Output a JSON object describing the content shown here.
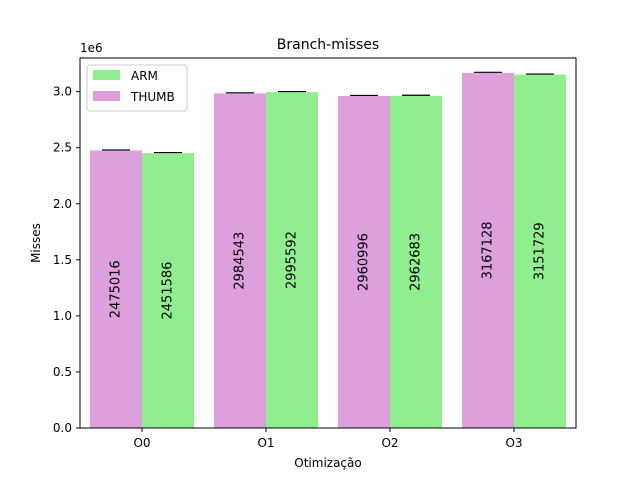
{
  "chart_data": {
    "type": "bar",
    "title": "Branch-misses",
    "xlabel": "Otimização",
    "ylabel": "Misses",
    "y_offset_label": "1e6",
    "y_scale": 1000000,
    "categories": [
      "O0",
      "O1",
      "O2",
      "O3"
    ],
    "ylim": [
      0,
      3300000
    ],
    "y_ticks": [
      0,
      500000,
      1000000,
      1500000,
      2000000,
      2500000,
      3000000
    ],
    "y_tick_labels": [
      "0.0",
      "0.5",
      "1.0",
      "1.5",
      "2.0",
      "2.5",
      "3.0"
    ],
    "grid": false,
    "legend_position": "top-left",
    "legend_entries": [
      {
        "name": "ARM",
        "color": "#90ee90"
      },
      {
        "name": "THUMB",
        "color": "#dda0dd"
      }
    ],
    "series": [
      {
        "color": "#dda0dd",
        "values": [
          2475016,
          2984543,
          2960996,
          3167128
        ],
        "labels": [
          "2475016",
          "2984543",
          "2960996",
          "3167128"
        ],
        "error": [
          5000,
          5000,
          5000,
          5000
        ]
      },
      {
        "color": "#90ee90",
        "values": [
          2451586,
          2995592,
          2962683,
          3151729
        ],
        "labels": [
          "2451586",
          "2995592",
          "2962683",
          "3151729"
        ],
        "error": [
          5000,
          5000,
          5000,
          5000
        ]
      }
    ]
  }
}
